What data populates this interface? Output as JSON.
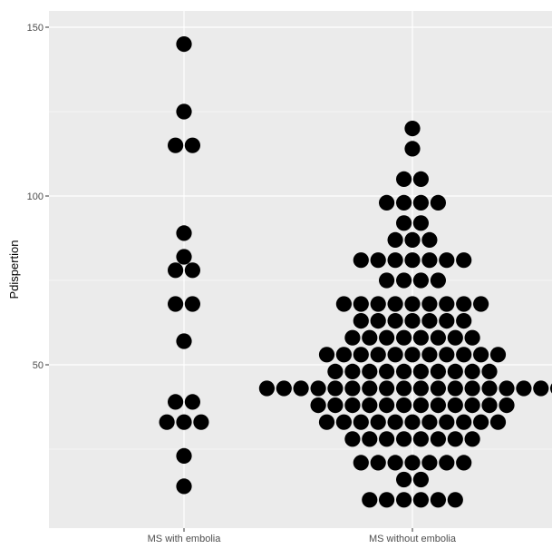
{
  "chart_data": {
    "type": "scatter",
    "subtype": "dotplot",
    "title": "",
    "xlabel": "",
    "ylabel": "Pdispertion",
    "categories": [
      "MS with embolia",
      "MS without embolia"
    ],
    "ylim": [
      0,
      155
    ],
    "yticks": [
      50,
      100,
      150
    ],
    "grid": true,
    "legend": "none",
    "colors": {
      "panel": "#ebebeb",
      "grid": "#ffffff",
      "dot": "#000000",
      "tick_label": "#4d4d4d"
    },
    "series": [
      {
        "category": "MS with embolia",
        "bins": [
          {
            "y": 145,
            "count": 1
          },
          {
            "y": 125,
            "count": 1
          },
          {
            "y": 115,
            "count": 2
          },
          {
            "y": 89,
            "count": 1
          },
          {
            "y": 82,
            "count": 1
          },
          {
            "y": 78,
            "count": 2
          },
          {
            "y": 68,
            "count": 2
          },
          {
            "y": 57,
            "count": 1
          },
          {
            "y": 39,
            "count": 2
          },
          {
            "y": 33,
            "count": 3
          },
          {
            "y": 23,
            "count": 1
          },
          {
            "y": 14,
            "count": 1
          }
        ]
      },
      {
        "category": "MS without embolia",
        "bins": [
          {
            "y": 120,
            "count": 1
          },
          {
            "y": 114,
            "count": 1
          },
          {
            "y": 105,
            "count": 2
          },
          {
            "y": 98,
            "count": 4
          },
          {
            "y": 92,
            "count": 2
          },
          {
            "y": 87,
            "count": 3
          },
          {
            "y": 81,
            "count": 7
          },
          {
            "y": 75,
            "count": 4
          },
          {
            "y": 68,
            "count": 9
          },
          {
            "y": 63,
            "count": 7
          },
          {
            "y": 58,
            "count": 8
          },
          {
            "y": 53,
            "count": 11
          },
          {
            "y": 48,
            "count": 10
          },
          {
            "y": 43,
            "count": 18
          },
          {
            "y": 38,
            "count": 12
          },
          {
            "y": 33,
            "count": 11
          },
          {
            "y": 28,
            "count": 8
          },
          {
            "y": 21,
            "count": 7
          },
          {
            "y": 16,
            "count": 2
          },
          {
            "y": 10,
            "count": 6
          }
        ]
      }
    ]
  }
}
